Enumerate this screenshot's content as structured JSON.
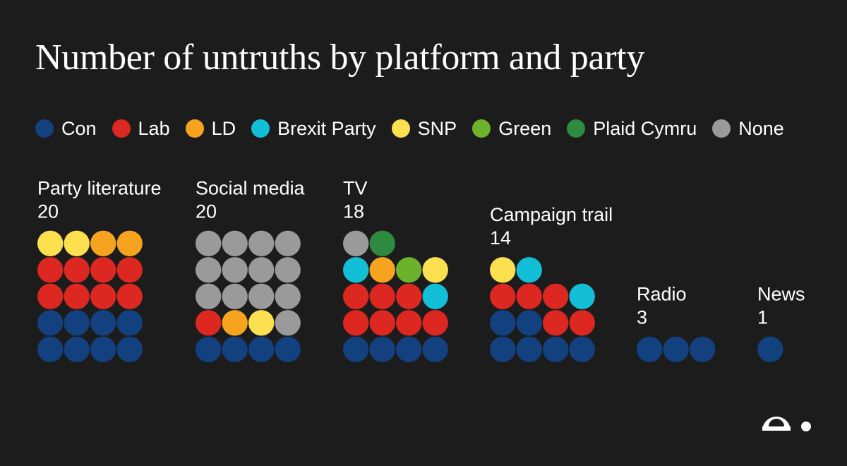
{
  "chart_data": {
    "type": "waffle",
    "title": "Number of untruths by platform and party",
    "legend": [
      {
        "key": "con",
        "label": "Con",
        "color": "#13407f"
      },
      {
        "key": "lab",
        "label": "Lab",
        "color": "#dc2820"
      },
      {
        "key": "ld",
        "label": "LD",
        "color": "#f6a420"
      },
      {
        "key": "brexit",
        "label": "Brexit Party",
        "color": "#12bfd6"
      },
      {
        "key": "snp",
        "label": "SNP",
        "color": "#fde050"
      },
      {
        "key": "green",
        "label": "Green",
        "color": "#6cb22d"
      },
      {
        "key": "plaid",
        "label": "Plaid Cymru",
        "color": "#2e8a3f"
      },
      {
        "key": "none",
        "label": "None",
        "color": "#9a9a9a"
      }
    ],
    "groups": [
      {
        "name": "Party literature",
        "total": "20",
        "counts": {
          "con": 8,
          "lab": 8,
          "ld": 2,
          "snp": 2
        }
      },
      {
        "name": "Social media",
        "total": "20",
        "counts": {
          "con": 4,
          "lab": 1,
          "ld": 1,
          "snp": 1,
          "none": 13
        }
      },
      {
        "name": "TV",
        "total": "18",
        "counts": {
          "con": 4,
          "lab": 7,
          "ld": 1,
          "brexit": 2,
          "snp": 1,
          "green": 1,
          "plaid": 1,
          "none": 1
        }
      },
      {
        "name": "Campaign trail",
        "total": "14",
        "counts": {
          "con": 6,
          "lab": 5,
          "brexit": 2,
          "snp": 1
        }
      },
      {
        "name": "Radio",
        "total": "3",
        "counts": {
          "con": 3
        }
      },
      {
        "name": "News",
        "total": "1",
        "counts": {
          "con": 1
        }
      }
    ]
  }
}
